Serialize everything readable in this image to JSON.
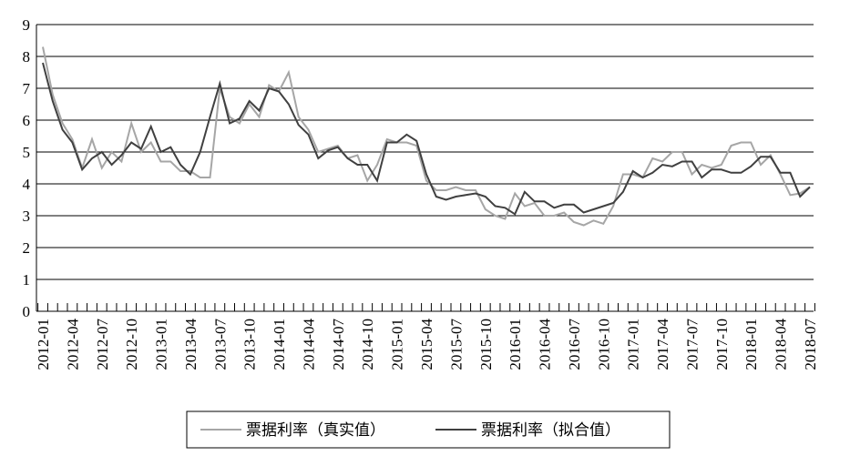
{
  "chart_data": {
    "type": "line",
    "categories": [
      "2012-01",
      null,
      null,
      "2012-04",
      null,
      null,
      "2012-07",
      null,
      null,
      "2012-10",
      null,
      null,
      "2013-01",
      null,
      null,
      "2013-04",
      null,
      null,
      "2013-07",
      null,
      null,
      "2013-10",
      null,
      null,
      "2014-01",
      null,
      null,
      "2014-04",
      null,
      null,
      "2014-07",
      null,
      null,
      "2014-10",
      null,
      null,
      "2015-01",
      null,
      null,
      "2015-04",
      null,
      null,
      "2015-07",
      null,
      null,
      "2015-10",
      null,
      null,
      "2016-01",
      null,
      null,
      "2016-04",
      null,
      null,
      "2016-07",
      null,
      null,
      "2016-10",
      null,
      null,
      "2017-01",
      null,
      null,
      "2017-04",
      null,
      null,
      "2017-07",
      null,
      null,
      "2017-10",
      null,
      null,
      "2018-01",
      null,
      null,
      "2018-04",
      null,
      null,
      "2018-07"
    ],
    "series": [
      {
        "name": "票据利率（真实值）",
        "color": "#a6a6a6",
        "values": [
          8.3,
          6.8,
          5.9,
          5.4,
          4.5,
          5.4,
          4.5,
          5.0,
          4.7,
          5.9,
          5.0,
          5.3,
          4.7,
          4.7,
          4.4,
          4.4,
          4.2,
          4.2,
          7.0,
          6.1,
          5.9,
          6.5,
          6.1,
          7.1,
          6.9,
          7.5,
          6.1,
          5.7,
          5.0,
          5.1,
          5.2,
          4.8,
          4.9,
          4.1,
          4.6,
          5.4,
          5.3,
          5.3,
          5.2,
          4.1,
          3.8,
          3.8,
          3.9,
          3.8,
          3.8,
          3.2,
          3.0,
          2.9,
          3.7,
          3.3,
          3.4,
          3.0,
          3.0,
          3.1,
          2.8,
          2.7,
          2.85,
          2.75,
          3.3,
          4.3,
          4.3,
          4.2,
          4.8,
          4.7,
          5.0,
          5.0,
          4.3,
          4.6,
          4.5,
          4.6,
          5.2,
          5.3,
          5.3,
          4.6,
          4.9,
          4.3,
          3.65,
          3.7,
          3.9
        ]
      },
      {
        "name": "票据利率（拟合值）",
        "color": "#404040",
        "values": [
          7.8,
          6.6,
          5.7,
          5.3,
          4.45,
          4.8,
          5.0,
          4.6,
          4.9,
          5.3,
          5.1,
          5.8,
          5.0,
          5.15,
          4.6,
          4.3,
          5.0,
          6.1,
          7.15,
          5.9,
          6.05,
          6.6,
          6.3,
          7.0,
          6.9,
          6.5,
          5.85,
          5.55,
          4.8,
          5.05,
          5.15,
          4.8,
          4.6,
          4.6,
          4.1,
          5.3,
          5.3,
          5.55,
          5.35,
          4.3,
          3.6,
          3.5,
          3.6,
          3.65,
          3.7,
          3.6,
          3.3,
          3.25,
          3.05,
          3.75,
          3.45,
          3.45,
          3.25,
          3.35,
          3.35,
          3.1,
          3.2,
          3.3,
          3.4,
          3.75,
          4.4,
          4.2,
          4.35,
          4.6,
          4.55,
          4.7,
          4.7,
          4.2,
          4.45,
          4.45,
          4.35,
          4.35,
          4.55,
          4.85,
          4.85,
          4.35,
          4.35,
          3.6,
          3.9
        ]
      }
    ],
    "ylim": [
      0,
      9
    ],
    "yticks": [
      0,
      1,
      2,
      3,
      4,
      5,
      6,
      7,
      8,
      9
    ],
    "grid": true,
    "legend": "bottom"
  }
}
